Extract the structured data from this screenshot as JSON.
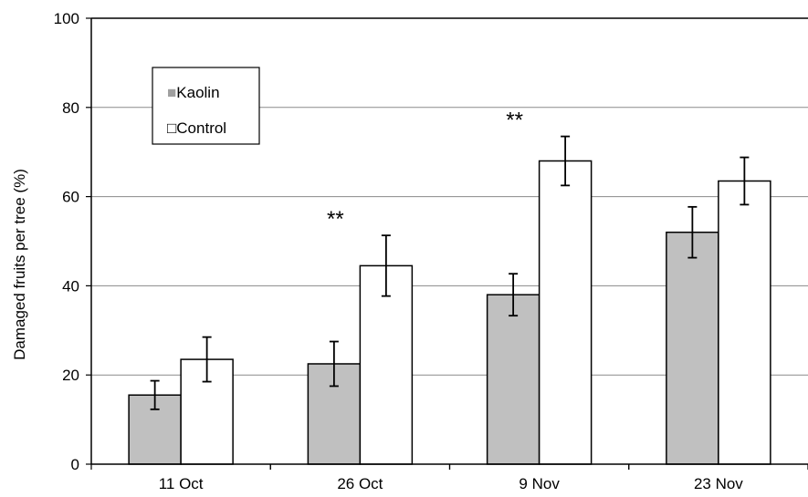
{
  "chart_data": {
    "type": "bar",
    "title": "",
    "xlabel": "",
    "ylabel": "Damaged  fruits per tree (%)",
    "ylim": [
      0,
      100
    ],
    "yticks": [
      0,
      20,
      40,
      60,
      80,
      100
    ],
    "grid": true,
    "legend_position": "top-left",
    "categories": [
      "11 Oct",
      "26 Oct",
      "9 Nov",
      "23 Nov"
    ],
    "series": [
      {
        "name": "Kaolin",
        "color": "#c0c0c0",
        "values": [
          15.5,
          22.5,
          38,
          52
        ],
        "errors": [
          3.2,
          5,
          4.7,
          5.7
        ],
        "legend_marker": "■"
      },
      {
        "name": "Control",
        "color": "#ffffff",
        "values": [
          23.5,
          44.5,
          68,
          63.5
        ],
        "errors": [
          5,
          6.8,
          5.5,
          5.3
        ],
        "legend_marker": "□"
      }
    ],
    "annotations": [
      {
        "category": "26 Oct",
        "text": "**"
      },
      {
        "category": "9 Nov",
        "text": "**"
      }
    ]
  }
}
